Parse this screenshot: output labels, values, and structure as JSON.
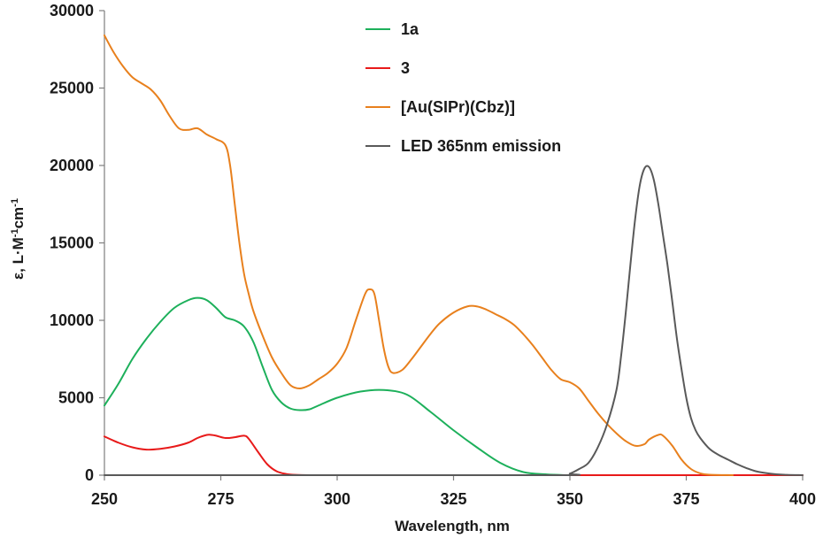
{
  "chart_data": {
    "type": "line",
    "title": "",
    "xlabel": "Wavelength, nm",
    "ylabel_main": "ε, L·M",
    "ylabel_sup1": "-1",
    "ylabel_mid": "cm",
    "ylabel_sup2": "-1",
    "xlim": [
      250,
      400
    ],
    "ylim": [
      0,
      30000
    ],
    "xticks": [
      "250",
      "275",
      "300",
      "325",
      "350",
      "375",
      "400"
    ],
    "yticks": [
      "0",
      "5000",
      "10000",
      "15000",
      "20000",
      "25000",
      "30000"
    ],
    "grid": false,
    "legend_position": "top-center",
    "series": [
      {
        "name": "1a",
        "color": "#1db05b",
        "x": [
          250,
          253,
          256,
          259,
          262,
          265,
          268,
          270,
          272,
          274,
          276,
          278,
          280,
          282,
          284,
          286,
          288,
          290,
          292,
          294,
          296,
          300,
          305,
          310,
          315,
          320,
          325,
          330,
          335,
          340,
          345,
          350,
          355
        ],
        "y": [
          4500,
          5900,
          7500,
          8800,
          9900,
          10800,
          11300,
          11450,
          11300,
          10800,
          10200,
          10000,
          9600,
          8600,
          7000,
          5500,
          4700,
          4300,
          4200,
          4250,
          4500,
          5000,
          5400,
          5500,
          5200,
          4100,
          2900,
          1800,
          800,
          200,
          50,
          0,
          0
        ]
      },
      {
        "name": "3",
        "color": "#e81a1a",
        "x": [
          250,
          253,
          256,
          259,
          262,
          265,
          268,
          270,
          272,
          273,
          274,
          276,
          278,
          280,
          281,
          283,
          285,
          287,
          289,
          291,
          295,
          300,
          310,
          330,
          350,
          375,
          400
        ],
        "y": [
          2500,
          2100,
          1800,
          1650,
          1700,
          1850,
          2100,
          2400,
          2600,
          2600,
          2550,
          2400,
          2450,
          2550,
          2350,
          1500,
          700,
          250,
          80,
          20,
          0,
          0,
          0,
          0,
          0,
          0,
          0
        ]
      },
      {
        "name": "[Au(SIPr)(Cbz)]",
        "color": "#e8801d",
        "x": [
          250,
          252,
          254,
          256,
          258,
          260,
          262,
          264,
          266,
          268,
          270,
          272,
          274,
          276,
          277,
          278,
          279,
          280,
          281,
          282,
          284,
          286,
          288,
          290,
          292,
          294,
          296,
          298,
          300,
          302,
          304,
          306,
          307,
          308,
          309,
          310,
          311,
          312,
          314,
          316,
          318,
          320,
          322,
          325,
          328,
          330,
          332,
          334,
          336,
          338,
          340,
          342,
          344,
          346,
          348,
          350,
          352,
          354,
          356,
          358,
          360,
          362,
          364,
          366,
          367,
          369,
          370,
          372,
          374,
          376,
          378,
          380,
          385
        ],
        "y": [
          28400,
          27300,
          26400,
          25700,
          25300,
          24900,
          24200,
          23200,
          22400,
          22300,
          22400,
          22000,
          21700,
          21300,
          20000,
          17500,
          15000,
          13000,
          11700,
          10600,
          9000,
          7600,
          6600,
          5800,
          5600,
          5800,
          6200,
          6600,
          7200,
          8200,
          10000,
          11700,
          12000,
          11700,
          10000,
          8200,
          7000,
          6600,
          6800,
          7500,
          8300,
          9100,
          9800,
          10500,
          10900,
          10900,
          10700,
          10400,
          10100,
          9700,
          9100,
          8400,
          7600,
          6800,
          6200,
          6000,
          5600,
          4800,
          4000,
          3300,
          2700,
          2200,
          1900,
          2000,
          2300,
          2600,
          2550,
          1900,
          1000,
          400,
          120,
          30,
          0
        ]
      },
      {
        "name": "LED 365nm emission",
        "color": "#595959",
        "x": [
          250,
          300,
          348,
          350,
          352,
          354,
          356,
          358,
          360,
          361,
          362,
          363,
          364,
          365,
          366,
          367,
          368,
          369,
          370,
          371,
          372,
          373,
          374,
          375,
          376,
          377,
          378,
          380,
          382,
          384,
          386,
          388,
          390,
          393,
          396,
          400
        ],
        "y": [
          0,
          0,
          0,
          100,
          400,
          800,
          1800,
          3300,
          5500,
          7700,
          10500,
          13600,
          16500,
          18700,
          19800,
          19900,
          19100,
          17500,
          15500,
          13500,
          11200,
          8800,
          6800,
          5000,
          3700,
          2900,
          2400,
          1700,
          1300,
          1000,
          700,
          450,
          250,
          100,
          30,
          0
        ]
      }
    ]
  }
}
